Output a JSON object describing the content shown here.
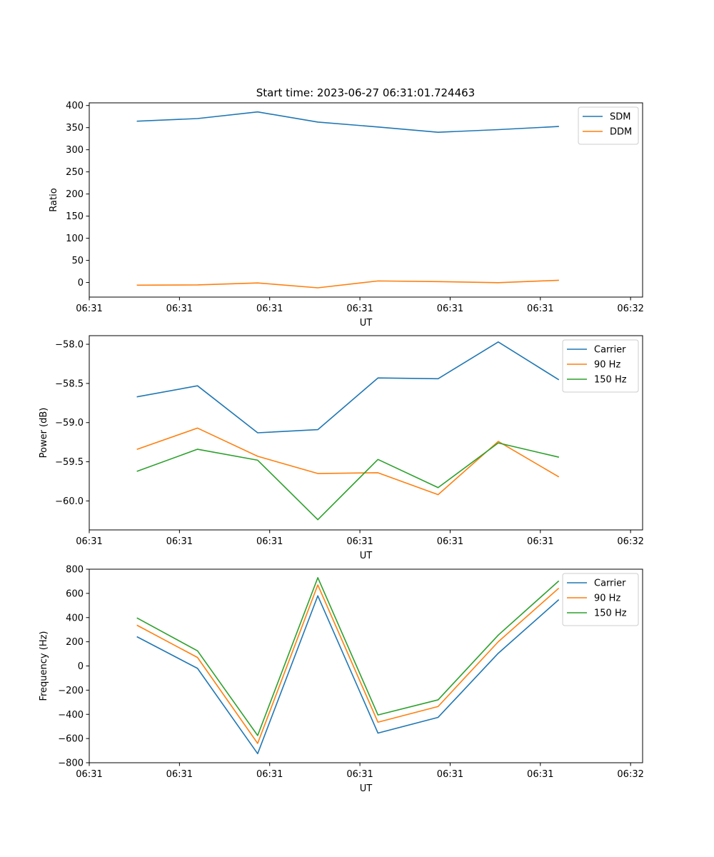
{
  "figure_title": "Start time: 2023-06-27 06:31:01.724463",
  "colors": {
    "blue": "#1f77b4",
    "orange": "#ff7f0e",
    "green": "#2ca02c"
  },
  "chart_data": [
    {
      "type": "line",
      "title": "Start time: 2023-06-27 06:31:01.724463",
      "xlabel": "UT",
      "ylabel": "Ratio",
      "x": [
        1,
        2,
        3,
        4,
        5,
        6,
        7,
        8
      ],
      "xlim": [
        0.2,
        9.4
      ],
      "xticks": [
        0.2,
        1.7,
        3.2,
        4.7,
        6.2,
        7.7,
        9.2
      ],
      "xtick_labels": [
        "06:31",
        "06:31",
        "06:31",
        "06:31",
        "06:31",
        "06:31",
        "06:32"
      ],
      "ylim": [
        -33,
        406
      ],
      "yticks": [
        0,
        50,
        100,
        150,
        200,
        250,
        300,
        350,
        400
      ],
      "ytick_labels": [
        "0",
        "50",
        "100",
        "150",
        "200",
        "250",
        "300",
        "350",
        "400"
      ],
      "legend": "top-right",
      "series": [
        {
          "name": "SDM",
          "color": "#1f77b4",
          "values": [
            364.5,
            370.5,
            385.5,
            362.5,
            351.5,
            339.5,
            345.5,
            352.5
          ]
        },
        {
          "name": "DDM",
          "color": "#ff7f0e",
          "values": [
            -6,
            -5.5,
            -1,
            -12,
            3.5,
            2,
            -0.5,
            5
          ]
        }
      ]
    },
    {
      "type": "line",
      "title": "",
      "xlabel": "UT",
      "ylabel": "Power (dB)",
      "x": [
        1,
        2,
        3,
        4,
        5,
        6,
        7,
        8
      ],
      "xlim": [
        0.2,
        9.4
      ],
      "xticks": [
        0.2,
        1.7,
        3.2,
        4.7,
        6.2,
        7.7,
        9.2
      ],
      "xtick_labels": [
        "06:31",
        "06:31",
        "06:31",
        "06:31",
        "06:31",
        "06:31",
        "06:32"
      ],
      "ylim": [
        -60.37,
        -57.89
      ],
      "yticks": [
        -60.0,
        -59.5,
        -59.0,
        -58.5,
        -58.0
      ],
      "ytick_labels": [
        "−60.0",
        "−59.5",
        "−59.0",
        "−58.5",
        "−58.0"
      ],
      "legend": "top-right",
      "series": [
        {
          "name": "Carrier",
          "color": "#1f77b4",
          "values": [
            -58.67,
            -58.53,
            -59.13,
            -59.09,
            -58.43,
            -58.44,
            -57.97,
            -58.45
          ]
        },
        {
          "name": "90 Hz",
          "color": "#ff7f0e",
          "values": [
            -59.34,
            -59.07,
            -59.43,
            -59.65,
            -59.64,
            -59.92,
            -59.24,
            -59.69
          ]
        },
        {
          "name": "150 Hz",
          "color": "#2ca02c",
          "values": [
            -59.62,
            -59.34,
            -59.48,
            -60.24,
            -59.47,
            -59.83,
            -59.26,
            -59.44
          ]
        }
      ]
    },
    {
      "type": "line",
      "title": "",
      "xlabel": "UT",
      "ylabel": "Frequency (Hz)",
      "x": [
        1,
        2,
        3,
        4,
        5,
        6,
        7,
        8
      ],
      "xlim": [
        0.2,
        9.4
      ],
      "xticks": [
        0.2,
        1.7,
        3.2,
        4.7,
        6.2,
        7.7,
        9.2
      ],
      "xtick_labels": [
        "06:31",
        "06:31",
        "06:31",
        "06:31",
        "06:31",
        "06:31",
        "06:32"
      ],
      "ylim": [
        -800,
        800
      ],
      "yticks": [
        -800,
        -600,
        -400,
        -200,
        0,
        200,
        400,
        600,
        800
      ],
      "ytick_labels": [
        "−800",
        "−600",
        "−400",
        "−200",
        "0",
        "200",
        "400",
        "600",
        "800"
      ],
      "legend": "top-right",
      "series": [
        {
          "name": "Carrier",
          "color": "#1f77b4",
          "values": [
            240,
            -20,
            -725,
            580,
            -555,
            -425,
            105,
            545
          ]
        },
        {
          "name": "90 Hz",
          "color": "#ff7f0e",
          "values": [
            335,
            70,
            -640,
            670,
            -465,
            -335,
            200,
            640
          ]
        },
        {
          "name": "150 Hz",
          "color": "#2ca02c",
          "values": [
            395,
            125,
            -575,
            730,
            -405,
            -280,
            255,
            700
          ]
        }
      ]
    }
  ]
}
